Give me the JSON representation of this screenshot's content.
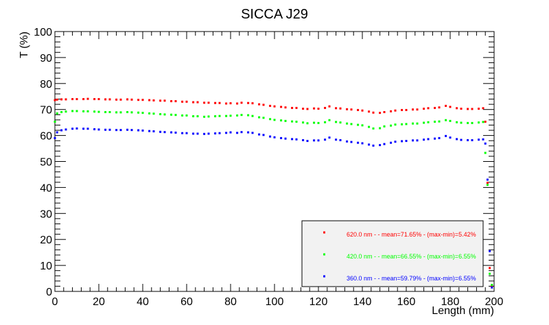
{
  "chart_data": {
    "type": "scatter",
    "title": "SICCA J29",
    "xlabel": "Length (mm)",
    "ylabel": "T (%)",
    "xlim": [
      0,
      200
    ],
    "ylim": [
      0,
      100
    ],
    "x_ticks": [
      "0",
      "20",
      "40",
      "60",
      "80",
      "100",
      "120",
      "140",
      "160",
      "180",
      "200"
    ],
    "y_ticks": [
      "0",
      "10",
      "20",
      "30",
      "40",
      "50",
      "60",
      "70",
      "80",
      "90",
      "100"
    ],
    "legend_position": "bottom-right",
    "grid": false,
    "series": [
      {
        "name": "620.0 nm -  - mean=71.65% - (max-min)=5.42%",
        "color": "#ff0000",
        "x": [
          0,
          1,
          3,
          5,
          8,
          10,
          13,
          15,
          18,
          20,
          23,
          25,
          28,
          30,
          33,
          35,
          38,
          40,
          43,
          45,
          48,
          50,
          53,
          55,
          58,
          60,
          63,
          65,
          68,
          70,
          73,
          75,
          78,
          80,
          83,
          85,
          88,
          90,
          93,
          95,
          98,
          100,
          103,
          105,
          108,
          110,
          113,
          115,
          118,
          120,
          123,
          125,
          128,
          130,
          133,
          135,
          138,
          140,
          143,
          145,
          148,
          150,
          153,
          155,
          158,
          160,
          163,
          165,
          168,
          170,
          173,
          175,
          178,
          180,
          183,
          185,
          188,
          190,
          193,
          195,
          196,
          197,
          198,
          199
        ],
        "y": [
          73.6,
          73.8,
          73.9,
          73.9,
          74.0,
          74.0,
          74.0,
          74.1,
          74.0,
          74.0,
          73.9,
          73.9,
          73.8,
          73.8,
          73.9,
          73.8,
          73.7,
          73.7,
          73.6,
          73.5,
          73.4,
          73.4,
          73.2,
          73.2,
          73.0,
          73.0,
          72.8,
          72.8,
          72.6,
          72.6,
          72.5,
          72.5,
          72.3,
          72.4,
          72.3,
          72.6,
          72.5,
          72.4,
          72.0,
          71.8,
          71.4,
          71.2,
          71.0,
          70.8,
          70.6,
          70.6,
          70.3,
          70.2,
          70.4,
          70.3,
          70.6,
          71.2,
          70.5,
          70.4,
          70.1,
          70.0,
          69.8,
          69.6,
          69.2,
          68.8,
          68.7,
          69.0,
          69.3,
          69.6,
          69.8,
          69.8,
          70.0,
          70.0,
          70.3,
          70.5,
          70.6,
          70.8,
          71.4,
          71.0,
          70.5,
          70.3,
          70.2,
          70.2,
          70.3,
          70.5,
          65.3,
          41.8,
          9.0,
          2.0
        ]
      },
      {
        "name": "420.0 nm -  - mean=66.55% - (max-min)=6.55%",
        "color": "#00ff00",
        "x": [
          0,
          1,
          3,
          5,
          8,
          10,
          13,
          15,
          18,
          20,
          23,
          25,
          28,
          30,
          33,
          35,
          38,
          40,
          43,
          45,
          48,
          50,
          53,
          55,
          58,
          60,
          63,
          65,
          68,
          70,
          73,
          75,
          78,
          80,
          83,
          85,
          88,
          90,
          93,
          95,
          98,
          100,
          103,
          105,
          108,
          110,
          113,
          115,
          118,
          120,
          123,
          125,
          128,
          130,
          133,
          135,
          138,
          140,
          143,
          145,
          148,
          150,
          153,
          155,
          158,
          160,
          163,
          165,
          168,
          170,
          173,
          175,
          178,
          180,
          183,
          185,
          188,
          190,
          193,
          195,
          196,
          197,
          198,
          199
        ],
        "y": [
          65.3,
          68.5,
          69.0,
          69.2,
          69.4,
          69.4,
          69.3,
          69.3,
          69.2,
          69.1,
          69.0,
          69.0,
          68.9,
          68.9,
          69.0,
          68.9,
          68.8,
          68.7,
          68.5,
          68.4,
          68.2,
          68.1,
          68.0,
          67.9,
          67.7,
          67.7,
          67.4,
          67.4,
          67.2,
          67.3,
          67.4,
          67.5,
          67.5,
          67.6,
          67.7,
          67.9,
          67.8,
          67.5,
          67.0,
          66.8,
          66.3,
          66.0,
          65.8,
          65.6,
          65.4,
          65.3,
          65.0,
          64.7,
          64.9,
          64.8,
          65.1,
          65.9,
          65.2,
          65.0,
          64.6,
          64.4,
          64.1,
          63.9,
          63.3,
          62.7,
          62.8,
          63.5,
          63.8,
          64.2,
          64.3,
          64.4,
          64.6,
          64.6,
          64.9,
          65.1,
          65.3,
          65.4,
          65.9,
          65.6,
          65.1,
          64.9,
          64.8,
          64.8,
          65.0,
          65.2,
          53.3,
          41.0,
          6.8,
          2.5
        ]
      },
      {
        "name": "360.0 nm -  - mean=59.79% - (max-min)=6.55%",
        "color": "#0000ff",
        "x": [
          0,
          1,
          3,
          5,
          8,
          10,
          13,
          15,
          18,
          20,
          23,
          25,
          28,
          30,
          33,
          35,
          38,
          40,
          43,
          45,
          48,
          50,
          53,
          55,
          58,
          60,
          63,
          65,
          68,
          70,
          73,
          75,
          78,
          80,
          83,
          85,
          88,
          90,
          93,
          95,
          98,
          100,
          103,
          105,
          108,
          110,
          113,
          115,
          118,
          120,
          123,
          125,
          128,
          130,
          133,
          135,
          138,
          140,
          143,
          145,
          148,
          150,
          153,
          155,
          158,
          160,
          163,
          165,
          168,
          170,
          173,
          175,
          178,
          180,
          183,
          185,
          188,
          190,
          193,
          195,
          196,
          197,
          198,
          199
        ],
        "y": [
          59.0,
          61.2,
          62.0,
          62.3,
          62.6,
          62.7,
          62.6,
          62.6,
          62.4,
          62.3,
          62.2,
          62.2,
          62.1,
          62.1,
          62.2,
          62.1,
          62.0,
          61.9,
          61.7,
          61.6,
          61.4,
          61.3,
          61.2,
          61.1,
          60.9,
          60.9,
          60.7,
          60.7,
          60.6,
          60.7,
          60.8,
          60.9,
          61.0,
          61.2,
          61.0,
          61.3,
          61.2,
          61.0,
          60.4,
          60.2,
          59.6,
          59.3,
          59.0,
          58.8,
          58.6,
          58.5,
          58.2,
          57.9,
          58.1,
          58.1,
          58.4,
          59.2,
          58.4,
          58.2,
          57.7,
          57.5,
          57.2,
          57.0,
          56.5,
          56.1,
          56.3,
          56.7,
          57.2,
          57.6,
          57.8,
          57.9,
          58.1,
          58.1,
          58.4,
          58.6,
          58.8,
          59.0,
          59.8,
          59.2,
          58.6,
          58.3,
          58.2,
          58.2,
          58.4,
          58.5,
          56.9,
          43.0,
          15.5,
          1.5
        ]
      }
    ]
  }
}
